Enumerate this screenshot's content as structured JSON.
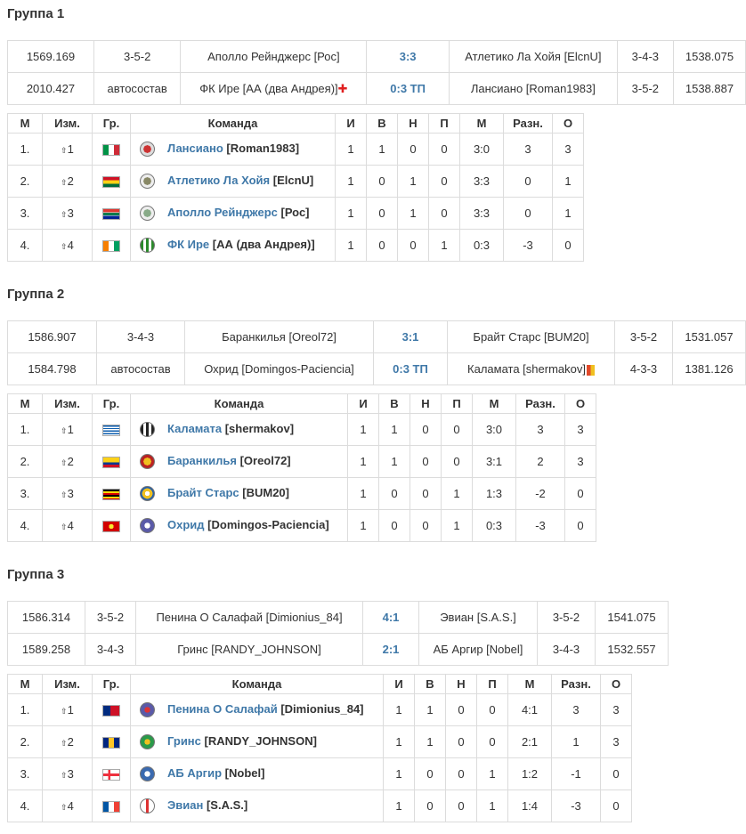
{
  "groups": [
    {
      "title": "Группа 1",
      "matches": [
        {
          "rating_home": "1569.169",
          "form_home": "3-5-2",
          "home": "Аполло Рейнджерс [Рос]",
          "score": "3:3",
          "away": "Атлетико Ла Хойя [ElcnU]",
          "form_away": "3-4-3",
          "rating_away": "1538.075"
        },
        {
          "rating_home": "2010.427",
          "form_home": "автосостав",
          "home": "ФК Ире [АА (два Андрея)]",
          "score": "0:3 ТП",
          "away": "Лансиано [Roman1983]",
          "form_away": "3-5-2",
          "rating_away": "1538.887"
        }
      ],
      "headers": [
        "М",
        "Изм.",
        "Гр.",
        "Команда",
        "И",
        "В",
        "Н",
        "П",
        "М",
        "Разн.",
        "О"
      ],
      "rows": [
        {
          "pos": "1.",
          "chg": "1",
          "team": "Лансиано",
          "mgr": "[Roman1983]",
          "p": "1",
          "w": "1",
          "d": "0",
          "l": "0",
          "g": "3:0",
          "diff": "3",
          "pts": "3"
        },
        {
          "pos": "2.",
          "chg": "2",
          "team": "Атлетико Ла Хойя",
          "mgr": "[ElcnU]",
          "p": "1",
          "w": "0",
          "d": "1",
          "l": "0",
          "g": "3:3",
          "diff": "0",
          "pts": "1"
        },
        {
          "pos": "3.",
          "chg": "3",
          "team": "Аполло Рейнджерс",
          "mgr": "[Рос]",
          "p": "1",
          "w": "0",
          "d": "1",
          "l": "0",
          "g": "3:3",
          "diff": "0",
          "pts": "1"
        },
        {
          "pos": "4.",
          "chg": "4",
          "team": "ФК Ире",
          "mgr": "[АА (два Андрея)]",
          "p": "1",
          "w": "0",
          "d": "0",
          "l": "1",
          "g": "0:3",
          "diff": "-3",
          "pts": "0"
        }
      ]
    },
    {
      "title": "Группа 2",
      "matches": [
        {
          "rating_home": "1586.907",
          "form_home": "3-4-3",
          "home": "Баранкилья [Oreol72]",
          "score": "3:1",
          "away": "Брайт Старс [BUM20]",
          "form_away": "3-5-2",
          "rating_away": "1531.057"
        },
        {
          "rating_home": "1584.798",
          "form_home": "автосостав",
          "home": "Охрид [Domingos-Paciencia]",
          "score": "0:3 ТП",
          "away": "Каламата [shermakov]",
          "form_away": "4-3-3",
          "rating_away": "1381.126"
        }
      ],
      "headers": [
        "М",
        "Изм.",
        "Гр.",
        "Команда",
        "И",
        "В",
        "Н",
        "П",
        "М",
        "Разн.",
        "О"
      ],
      "rows": [
        {
          "pos": "1.",
          "chg": "1",
          "team": "Каламата",
          "mgr": "[shermakov]",
          "p": "1",
          "w": "1",
          "d": "0",
          "l": "0",
          "g": "3:0",
          "diff": "3",
          "pts": "3"
        },
        {
          "pos": "2.",
          "chg": "2",
          "team": "Баранкилья",
          "mgr": "[Oreol72]",
          "p": "1",
          "w": "1",
          "d": "0",
          "l": "0",
          "g": "3:1",
          "diff": "2",
          "pts": "3"
        },
        {
          "pos": "3.",
          "chg": "3",
          "team": "Брайт Старс",
          "mgr": "[BUM20]",
          "p": "1",
          "w": "0",
          "d": "0",
          "l": "1",
          "g": "1:3",
          "diff": "-2",
          "pts": "0"
        },
        {
          "pos": "4.",
          "chg": "4",
          "team": "Охрид",
          "mgr": "[Domingos-Paciencia]",
          "p": "1",
          "w": "0",
          "d": "0",
          "l": "1",
          "g": "0:3",
          "diff": "-3",
          "pts": "0"
        }
      ]
    },
    {
      "title": "Группа 3",
      "matches": [
        {
          "rating_home": "1586.314",
          "form_home": "3-5-2",
          "home": "Пенина О Салафай [Dimionius_84]",
          "score": "4:1",
          "away": "Эвиан [S.A.S.]",
          "form_away": "3-5-2",
          "rating_away": "1541.075"
        },
        {
          "rating_home": "1589.258",
          "form_home": "3-4-3",
          "home": "Гринс [RANDY_JOHNSON]",
          "score": "2:1",
          "away": "АБ Аргир [Nobel]",
          "form_away": "3-4-3",
          "rating_away": "1532.557"
        }
      ],
      "headers": [
        "М",
        "Изм.",
        "Гр.",
        "Команда",
        "И",
        "В",
        "Н",
        "П",
        "М",
        "Разн.",
        "О"
      ],
      "rows": [
        {
          "pos": "1.",
          "chg": "1",
          "team": "Пенина О Салафай",
          "mgr": "[Dimionius_84]",
          "p": "1",
          "w": "1",
          "d": "0",
          "l": "0",
          "g": "4:1",
          "diff": "3",
          "pts": "3"
        },
        {
          "pos": "2.",
          "chg": "2",
          "team": "Гринс",
          "mgr": "[RANDY_JOHNSON]",
          "p": "1",
          "w": "1",
          "d": "0",
          "l": "0",
          "g": "2:1",
          "diff": "1",
          "pts": "3"
        },
        {
          "pos": "3.",
          "chg": "3",
          "team": "АБ Аргир",
          "mgr": "[Nobel]",
          "p": "1",
          "w": "0",
          "d": "0",
          "l": "1",
          "g": "1:2",
          "diff": "-1",
          "pts": "0"
        },
        {
          "pos": "4.",
          "chg": "4",
          "team": "Эвиан",
          "mgr": "[S.A.S.]",
          "p": "1",
          "w": "0",
          "d": "0",
          "l": "1",
          "g": "1:4",
          "diff": "-3",
          "pts": "0"
        }
      ]
    }
  ],
  "colors": {
    "link": "#3f78a8",
    "border": "#dcdcdc",
    "change_up": "#4a9a2a"
  }
}
